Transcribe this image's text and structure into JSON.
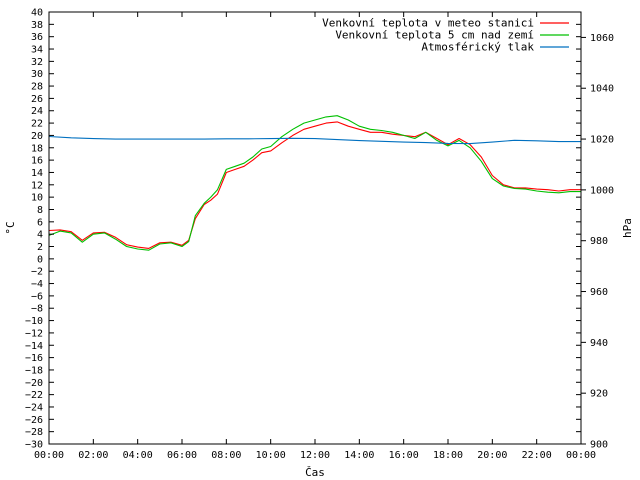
{
  "chart_data": {
    "type": "line",
    "xlabel": "Čas",
    "ylabel_left": "°C",
    "ylabel_right": "hPa",
    "x_ticks": [
      "00:00",
      "02:00",
      "04:00",
      "06:00",
      "08:00",
      "10:00",
      "12:00",
      "14:00",
      "16:00",
      "18:00",
      "20:00",
      "22:00",
      "00:00"
    ],
    "x_range_hours": [
      0,
      24
    ],
    "ylim_left": [
      -30,
      40
    ],
    "ylim_right": [
      900,
      1070
    ],
    "left_ticks": [
      40,
      38,
      36,
      34,
      32,
      30,
      28,
      26,
      24,
      22,
      20,
      18,
      16,
      14,
      12,
      10,
      8,
      6,
      4,
      2,
      0,
      -2,
      -4,
      -6,
      -8,
      -10,
      -12,
      -14,
      -16,
      -18,
      -20,
      -22,
      -24,
      -26,
      -28,
      -30
    ],
    "right_ticks": [
      1060,
      1040,
      1020,
      1000,
      980,
      960,
      940,
      920,
      900
    ],
    "grid": false,
    "legend_position": "top-right",
    "series": [
      {
        "name": "Venkovní teplota v meteo stanici",
        "color": "#ff0000",
        "axis": "left",
        "points": [
          [
            0,
            4.6
          ],
          [
            0.5,
            4.7
          ],
          [
            1,
            4.4
          ],
          [
            1.5,
            3.0
          ],
          [
            2,
            4.2
          ],
          [
            2.5,
            4.3
          ],
          [
            3,
            3.5
          ],
          [
            3.5,
            2.3
          ],
          [
            4,
            1.9
          ],
          [
            4.5,
            1.7
          ],
          [
            5,
            2.6
          ],
          [
            5.5,
            2.7
          ],
          [
            6,
            2.2
          ],
          [
            6.3,
            3.0
          ],
          [
            6.6,
            6.5
          ],
          [
            7,
            8.8
          ],
          [
            7.3,
            9.5
          ],
          [
            7.6,
            10.5
          ],
          [
            8,
            14.0
          ],
          [
            8.4,
            14.5
          ],
          [
            8.8,
            15.0
          ],
          [
            9.2,
            16.0
          ],
          [
            9.6,
            17.2
          ],
          [
            10,
            17.5
          ],
          [
            10.5,
            18.8
          ],
          [
            11,
            20.0
          ],
          [
            11.5,
            21.0
          ],
          [
            12,
            21.5
          ],
          [
            12.5,
            22.0
          ],
          [
            13,
            22.2
          ],
          [
            13.5,
            21.5
          ],
          [
            14,
            21.0
          ],
          [
            14.5,
            20.5
          ],
          [
            15,
            20.5
          ],
          [
            15.5,
            20.2
          ],
          [
            16,
            20.0
          ],
          [
            16.5,
            19.8
          ],
          [
            17,
            20.5
          ],
          [
            17.5,
            19.5
          ],
          [
            18,
            18.5
          ],
          [
            18.5,
            19.5
          ],
          [
            19,
            18.5
          ],
          [
            19.5,
            16.5
          ],
          [
            20,
            13.5
          ],
          [
            20.5,
            12.0
          ],
          [
            21,
            11.5
          ],
          [
            21.5,
            11.5
          ],
          [
            22,
            11.3
          ],
          [
            22.5,
            11.2
          ],
          [
            23,
            11.0
          ],
          [
            23.5,
            11.2
          ],
          [
            24,
            11.2
          ]
        ]
      },
      {
        "name": "Venkovní teplota 5 cm nad zemí",
        "color": "#00c000",
        "axis": "left",
        "points": [
          [
            0,
            3.8
          ],
          [
            0.5,
            4.5
          ],
          [
            1,
            4.2
          ],
          [
            1.5,
            2.7
          ],
          [
            2,
            4.0
          ],
          [
            2.5,
            4.2
          ],
          [
            3,
            3.2
          ],
          [
            3.5,
            2.0
          ],
          [
            4,
            1.6
          ],
          [
            4.5,
            1.4
          ],
          [
            5,
            2.4
          ],
          [
            5.5,
            2.6
          ],
          [
            6,
            2.0
          ],
          [
            6.3,
            2.8
          ],
          [
            6.6,
            7.0
          ],
          [
            7,
            9.0
          ],
          [
            7.3,
            10.0
          ],
          [
            7.6,
            11.2
          ],
          [
            8,
            14.5
          ],
          [
            8.4,
            15.0
          ],
          [
            8.8,
            15.5
          ],
          [
            9.2,
            16.5
          ],
          [
            9.6,
            17.8
          ],
          [
            10,
            18.2
          ],
          [
            10.5,
            19.8
          ],
          [
            11,
            21.0
          ],
          [
            11.5,
            22.0
          ],
          [
            12,
            22.5
          ],
          [
            12.5,
            23.0
          ],
          [
            13,
            23.2
          ],
          [
            13.5,
            22.5
          ],
          [
            14,
            21.5
          ],
          [
            14.5,
            21.0
          ],
          [
            15,
            20.8
          ],
          [
            15.5,
            20.5
          ],
          [
            16,
            20.0
          ],
          [
            16.5,
            19.5
          ],
          [
            17,
            20.5
          ],
          [
            17.5,
            19.2
          ],
          [
            18,
            18.3
          ],
          [
            18.5,
            19.2
          ],
          [
            19,
            18.0
          ],
          [
            19.5,
            15.8
          ],
          [
            20,
            13.0
          ],
          [
            20.5,
            11.8
          ],
          [
            21,
            11.4
          ],
          [
            21.5,
            11.3
          ],
          [
            22,
            11.0
          ],
          [
            22.5,
            10.8
          ],
          [
            23,
            10.7
          ],
          [
            23.5,
            10.9
          ],
          [
            24,
            10.9
          ]
        ]
      },
      {
        "name": "Atmosférický tlak",
        "color": "#0070c0",
        "axis": "right",
        "points": [
          [
            0,
            1021.0
          ],
          [
            1,
            1020.5
          ],
          [
            2,
            1020.2
          ],
          [
            3,
            1020.0
          ],
          [
            4,
            1020.0
          ],
          [
            5,
            1020.0
          ],
          [
            6,
            1020.0
          ],
          [
            7,
            1020.0
          ],
          [
            8,
            1020.1
          ],
          [
            9,
            1020.1
          ],
          [
            10,
            1020.2
          ],
          [
            11,
            1020.3
          ],
          [
            12,
            1020.2
          ],
          [
            13,
            1019.8
          ],
          [
            14,
            1019.4
          ],
          [
            15,
            1019.1
          ],
          [
            16,
            1018.8
          ],
          [
            17,
            1018.6
          ],
          [
            18,
            1018.3
          ],
          [
            19,
            1018.2
          ],
          [
            20,
            1018.8
          ],
          [
            21,
            1019.5
          ],
          [
            22,
            1019.3
          ],
          [
            23,
            1019.0
          ],
          [
            24,
            1019.0
          ]
        ]
      }
    ]
  }
}
